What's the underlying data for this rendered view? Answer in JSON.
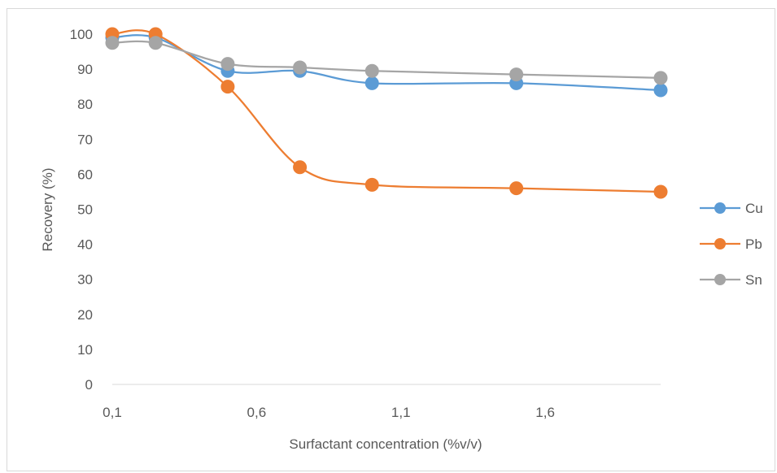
{
  "chart_data": {
    "type": "line",
    "title": "",
    "xlabel": "Surfactant concentration (%v/v)",
    "ylabel": "Recovery (%)",
    "xlim": [
      0.1,
      2.0
    ],
    "ylim": [
      0,
      100
    ],
    "x_ticks": [
      0.1,
      0.6,
      1.1,
      1.6
    ],
    "x_tick_labels": [
      "0,1",
      "0,6",
      "1,1",
      "1,6"
    ],
    "y_ticks": [
      0,
      10,
      20,
      30,
      40,
      50,
      60,
      70,
      80,
      90,
      100
    ],
    "y_tick_labels": [
      "0",
      "10",
      "20",
      "30",
      "40",
      "50",
      "60",
      "70",
      "80",
      "90",
      "100"
    ],
    "grid": false,
    "smooth": true,
    "legend_position": "right",
    "series": [
      {
        "name": "Cu",
        "color": "#5b9bd5",
        "x": [
          0.1,
          0.25,
          0.5,
          0.75,
          1.0,
          1.5,
          2.0
        ],
        "y": [
          99.0,
          99.0,
          89.5,
          89.5,
          86.0,
          86.0,
          84.0
        ]
      },
      {
        "name": "Pb",
        "color": "#ed7d31",
        "x": [
          0.1,
          0.25,
          0.5,
          0.75,
          1.0,
          1.5,
          2.0
        ],
        "y": [
          100.0,
          100.0,
          85.0,
          62.0,
          57.0,
          56.0,
          55.0
        ]
      },
      {
        "name": "Sn",
        "color": "#a5a5a5",
        "x": [
          0.1,
          0.25,
          0.5,
          0.75,
          1.0,
          1.5,
          2.0
        ],
        "y": [
          97.5,
          97.5,
          91.5,
          90.5,
          89.5,
          88.5,
          87.5
        ]
      }
    ]
  }
}
